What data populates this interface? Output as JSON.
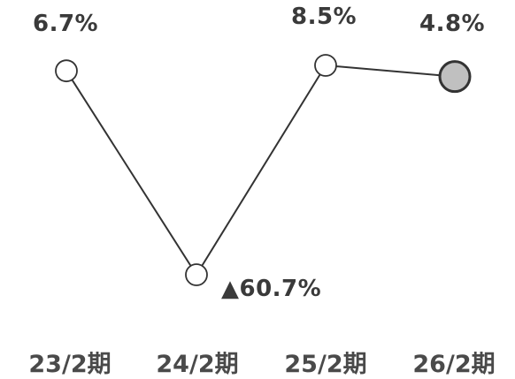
{
  "chart_data": {
    "type": "line",
    "categories": [
      "23/2期",
      "24/2期",
      "25/2期",
      "26/2期"
    ],
    "series": [
      {
        "values": [
          6.7,
          -60.7,
          8.5,
          4.8
        ],
        "labels": [
          "6.7%",
          "▲60.7%",
          "8.5%",
          "4.8%"
        ]
      }
    ],
    "title": "",
    "xlabel": "",
    "ylabel": "",
    "ylim": [
      -60.7,
      8.5
    ],
    "grid": false,
    "colors": {
      "line": "#333333",
      "marker_fill": "#ffffff",
      "highlight_fill": "#c0c0c0",
      "text": "#3a3a3a"
    }
  }
}
